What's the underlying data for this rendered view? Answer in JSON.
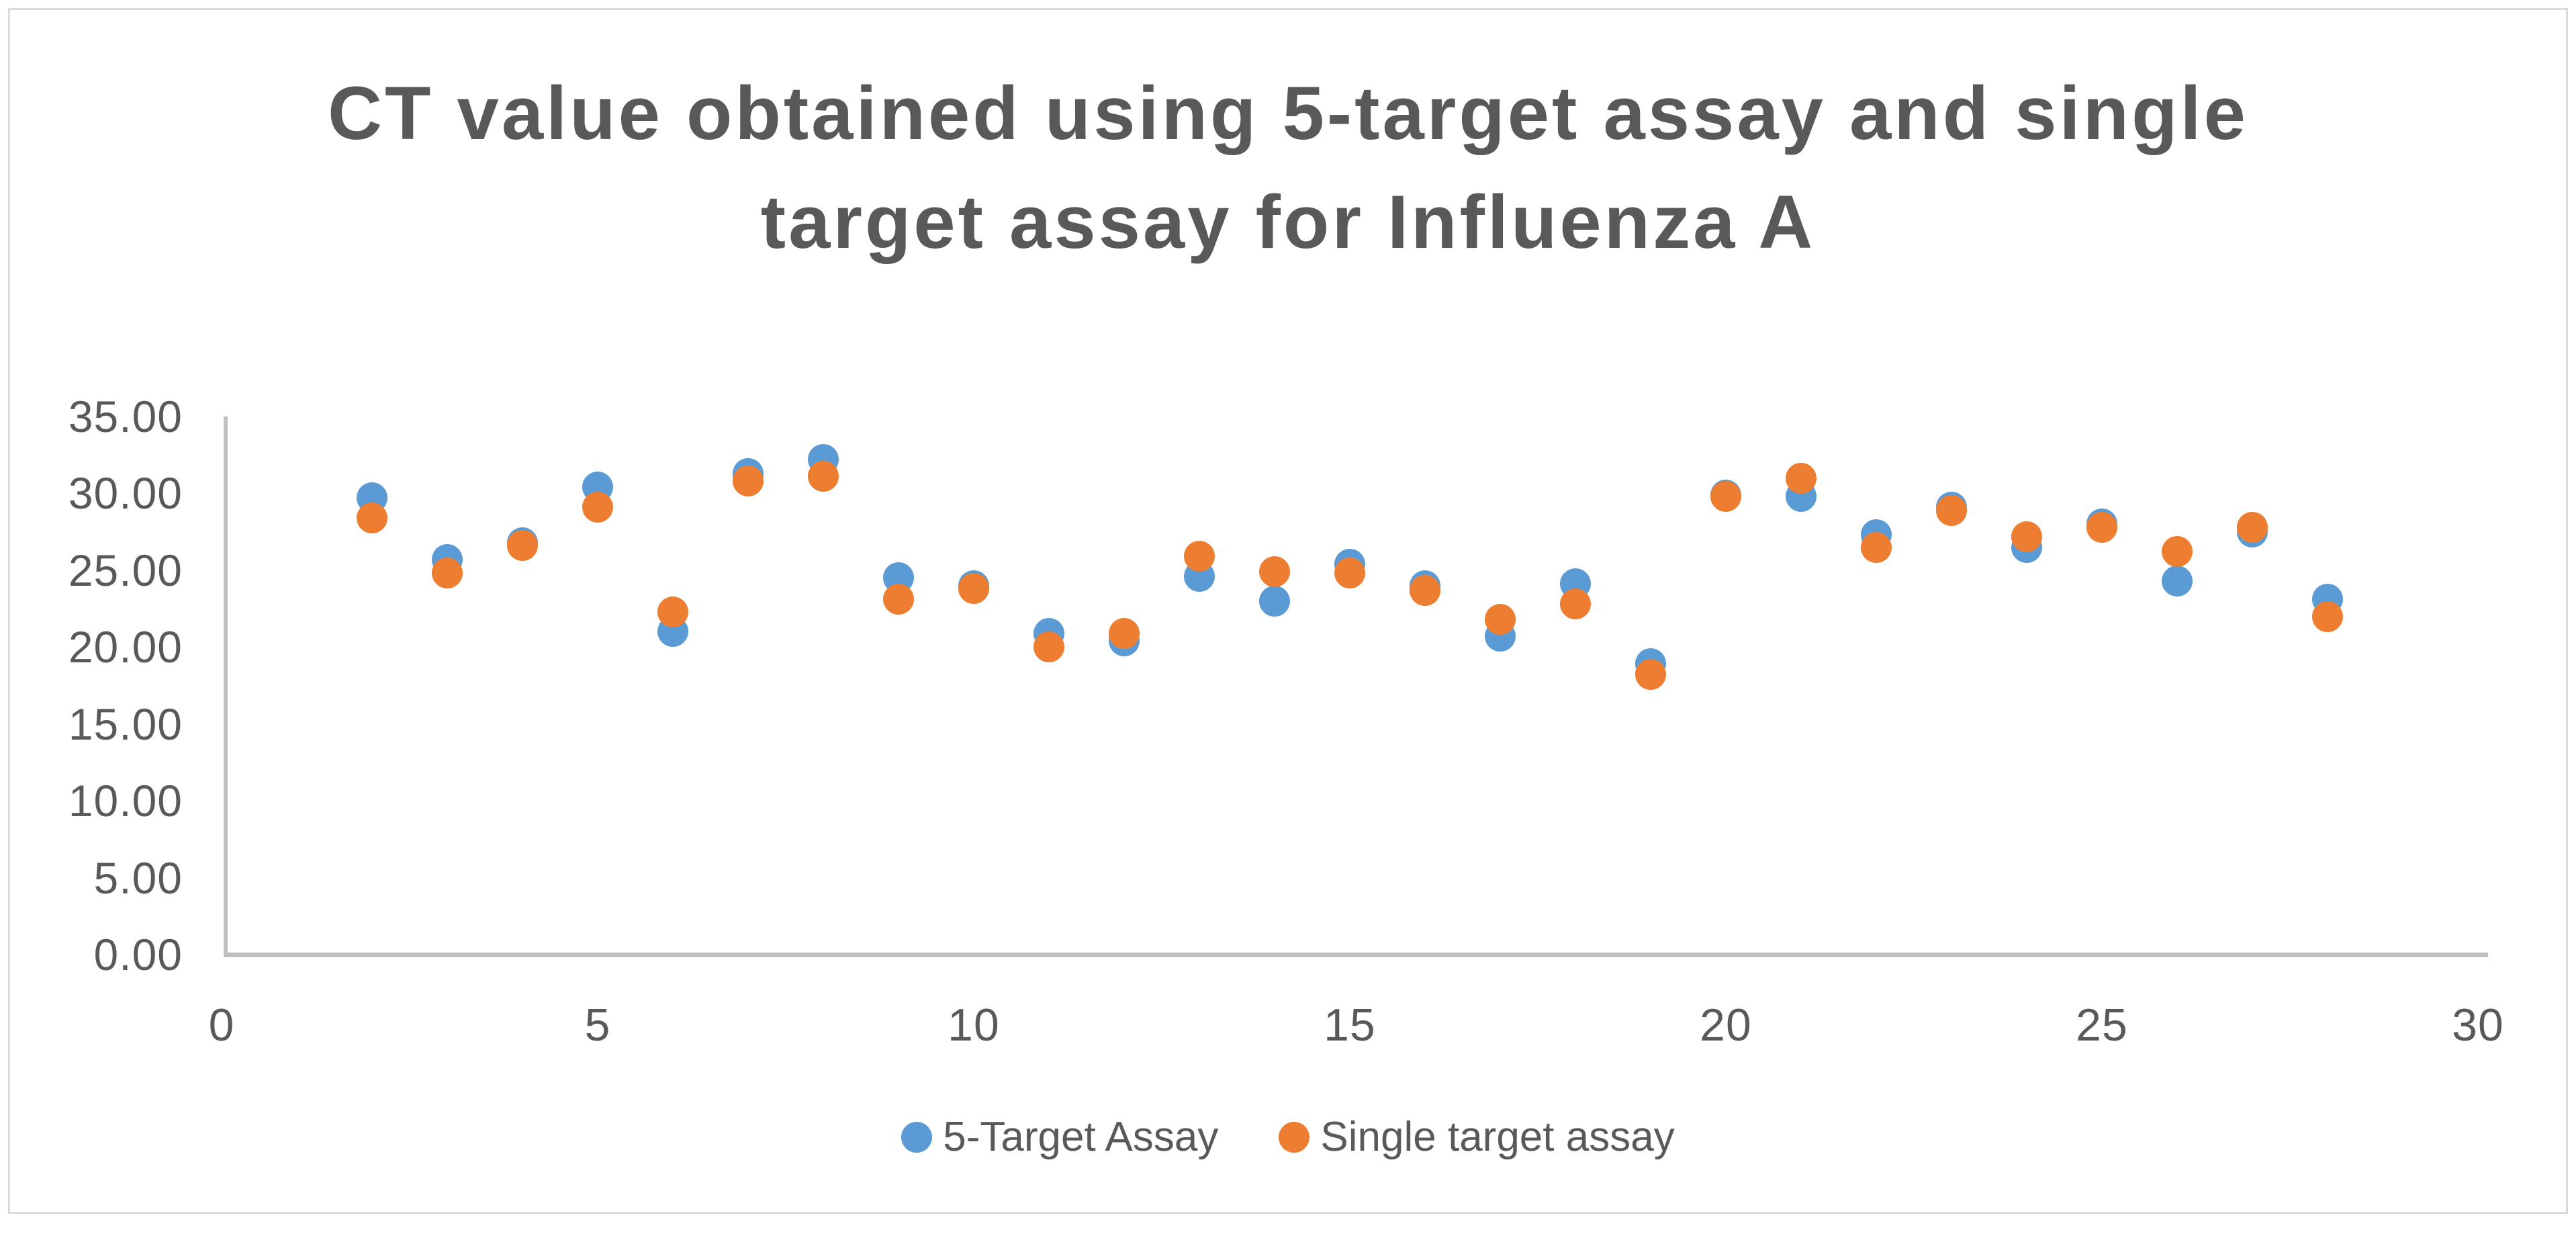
{
  "chart_data": {
    "type": "scatter",
    "title": "CT value obtained using 5-target assay and single target assay for Influenza A",
    "title_lines": [
      "CT value obtained using 5-target assay and single",
      "target assay for Influenza A"
    ],
    "xlabel": "",
    "ylabel": "",
    "xlim": [
      0,
      30
    ],
    "ylim": [
      0,
      35
    ],
    "x_ticks": [
      0,
      5,
      10,
      15,
      20,
      25,
      30
    ],
    "y_ticks": [
      0,
      5,
      10,
      15,
      20,
      25,
      30,
      35
    ],
    "y_tick_format_decimals": 2,
    "grid": false,
    "legend_position": "bottom",
    "x": [
      2,
      3,
      4,
      5,
      6,
      7,
      8,
      9,
      10,
      11,
      12,
      13,
      14,
      15,
      16,
      17,
      18,
      19,
      20,
      21,
      22,
      23,
      24,
      25,
      26,
      27,
      28
    ],
    "series": [
      {
        "name": "5-Target Assay",
        "color": "#5B9BD5",
        "values": [
          29.7,
          25.7,
          26.8,
          30.4,
          21.0,
          31.3,
          32.2,
          24.5,
          24.0,
          20.9,
          20.4,
          24.6,
          23.0,
          25.4,
          24.0,
          20.7,
          24.1,
          18.9,
          29.9,
          29.8,
          27.3,
          29.1,
          26.5,
          28.0,
          24.3,
          27.5,
          23.1
        ]
      },
      {
        "name": "Single target assay",
        "color": "#ED7D31",
        "values": [
          28.4,
          24.8,
          26.6,
          29.1,
          22.3,
          30.8,
          31.1,
          23.1,
          23.8,
          20.0,
          20.9,
          25.9,
          24.9,
          24.8,
          23.7,
          21.8,
          22.8,
          18.2,
          29.8,
          31.0,
          26.5,
          28.9,
          27.2,
          27.8,
          26.2,
          27.8,
          22.0
        ]
      }
    ]
  },
  "colors": {
    "text": "#595959",
    "axis_line": "#BFBFBF",
    "frame_border": "#D9D9D9",
    "background": "#FFFFFF"
  }
}
